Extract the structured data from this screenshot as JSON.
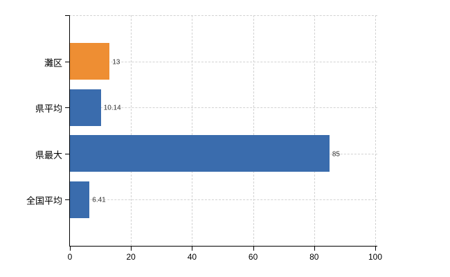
{
  "chart_data": {
    "type": "bar",
    "orientation": "horizontal",
    "title": "",
    "xlabel": "",
    "ylabel": "",
    "categories": [
      "灘区",
      "県平均",
      "県最大",
      "全国平均"
    ],
    "values": [
      13,
      10.14,
      85,
      6.41
    ],
    "value_labels": [
      "13",
      "10.14",
      "85",
      "6.41"
    ],
    "bar_colors": [
      "#ee8e33",
      "#3a6cad",
      "#3a6cad",
      "#3a6cad"
    ],
    "xlim": [
      0,
      100
    ],
    "x_ticks": [
      "0",
      "20",
      "40",
      "60",
      "80",
      "100"
    ],
    "x_tick_values": [
      0,
      20,
      40,
      60,
      80,
      100
    ],
    "grid": "dashed",
    "legend": "none",
    "colors": {
      "highlight_bar": "#ee8e33",
      "default_bar": "#3a6cad",
      "axis": "#000000",
      "gridline": "#d2d2d2",
      "value_text": "#333333",
      "label_text": "#000000",
      "background": "#ffffff"
    }
  }
}
